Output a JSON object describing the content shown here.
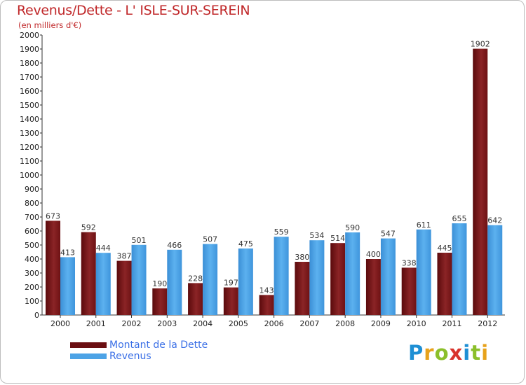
{
  "header": {
    "title": "Revenus/Dette - L' ISLE-SUR-SEREIN",
    "subtitle": "(en milliers d'€)"
  },
  "chart_data": {
    "type": "bar",
    "title": "Revenus/Dette - L' ISLE-SUR-SEREIN",
    "subtitle": "(en milliers d'€)",
    "categories": [
      "2000",
      "2001",
      "2002",
      "2003",
      "2004",
      "2005",
      "2006",
      "2007",
      "2008",
      "2009",
      "2010",
      "2011",
      "2012"
    ],
    "series": [
      {
        "name": "Montant de la Dette",
        "color": "#7a1416",
        "values": [
          673,
          592,
          387,
          190,
          228,
          197,
          143,
          380,
          514,
          400,
          338,
          445,
          1902
        ]
      },
      {
        "name": "Revenus",
        "color": "#4da3e6",
        "values": [
          413,
          444,
          501,
          466,
          507,
          475,
          559,
          534,
          590,
          547,
          611,
          655,
          642
        ]
      }
    ],
    "ylim": [
      0,
      2000
    ],
    "yticks": [
      0,
      100,
      200,
      300,
      400,
      500,
      600,
      700,
      800,
      900,
      1000,
      1100,
      1200,
      1300,
      1400,
      1500,
      1600,
      1700,
      1800,
      1900,
      2000
    ],
    "grid": false,
    "legend_position": "bottom-left"
  },
  "legend": {
    "items": [
      {
        "label": "Montant de la Dette",
        "color": "#6b0f12"
      },
      {
        "label": "Revenus",
        "color": "#4da3e6"
      }
    ]
  },
  "logo": {
    "text": "Proxiti"
  }
}
